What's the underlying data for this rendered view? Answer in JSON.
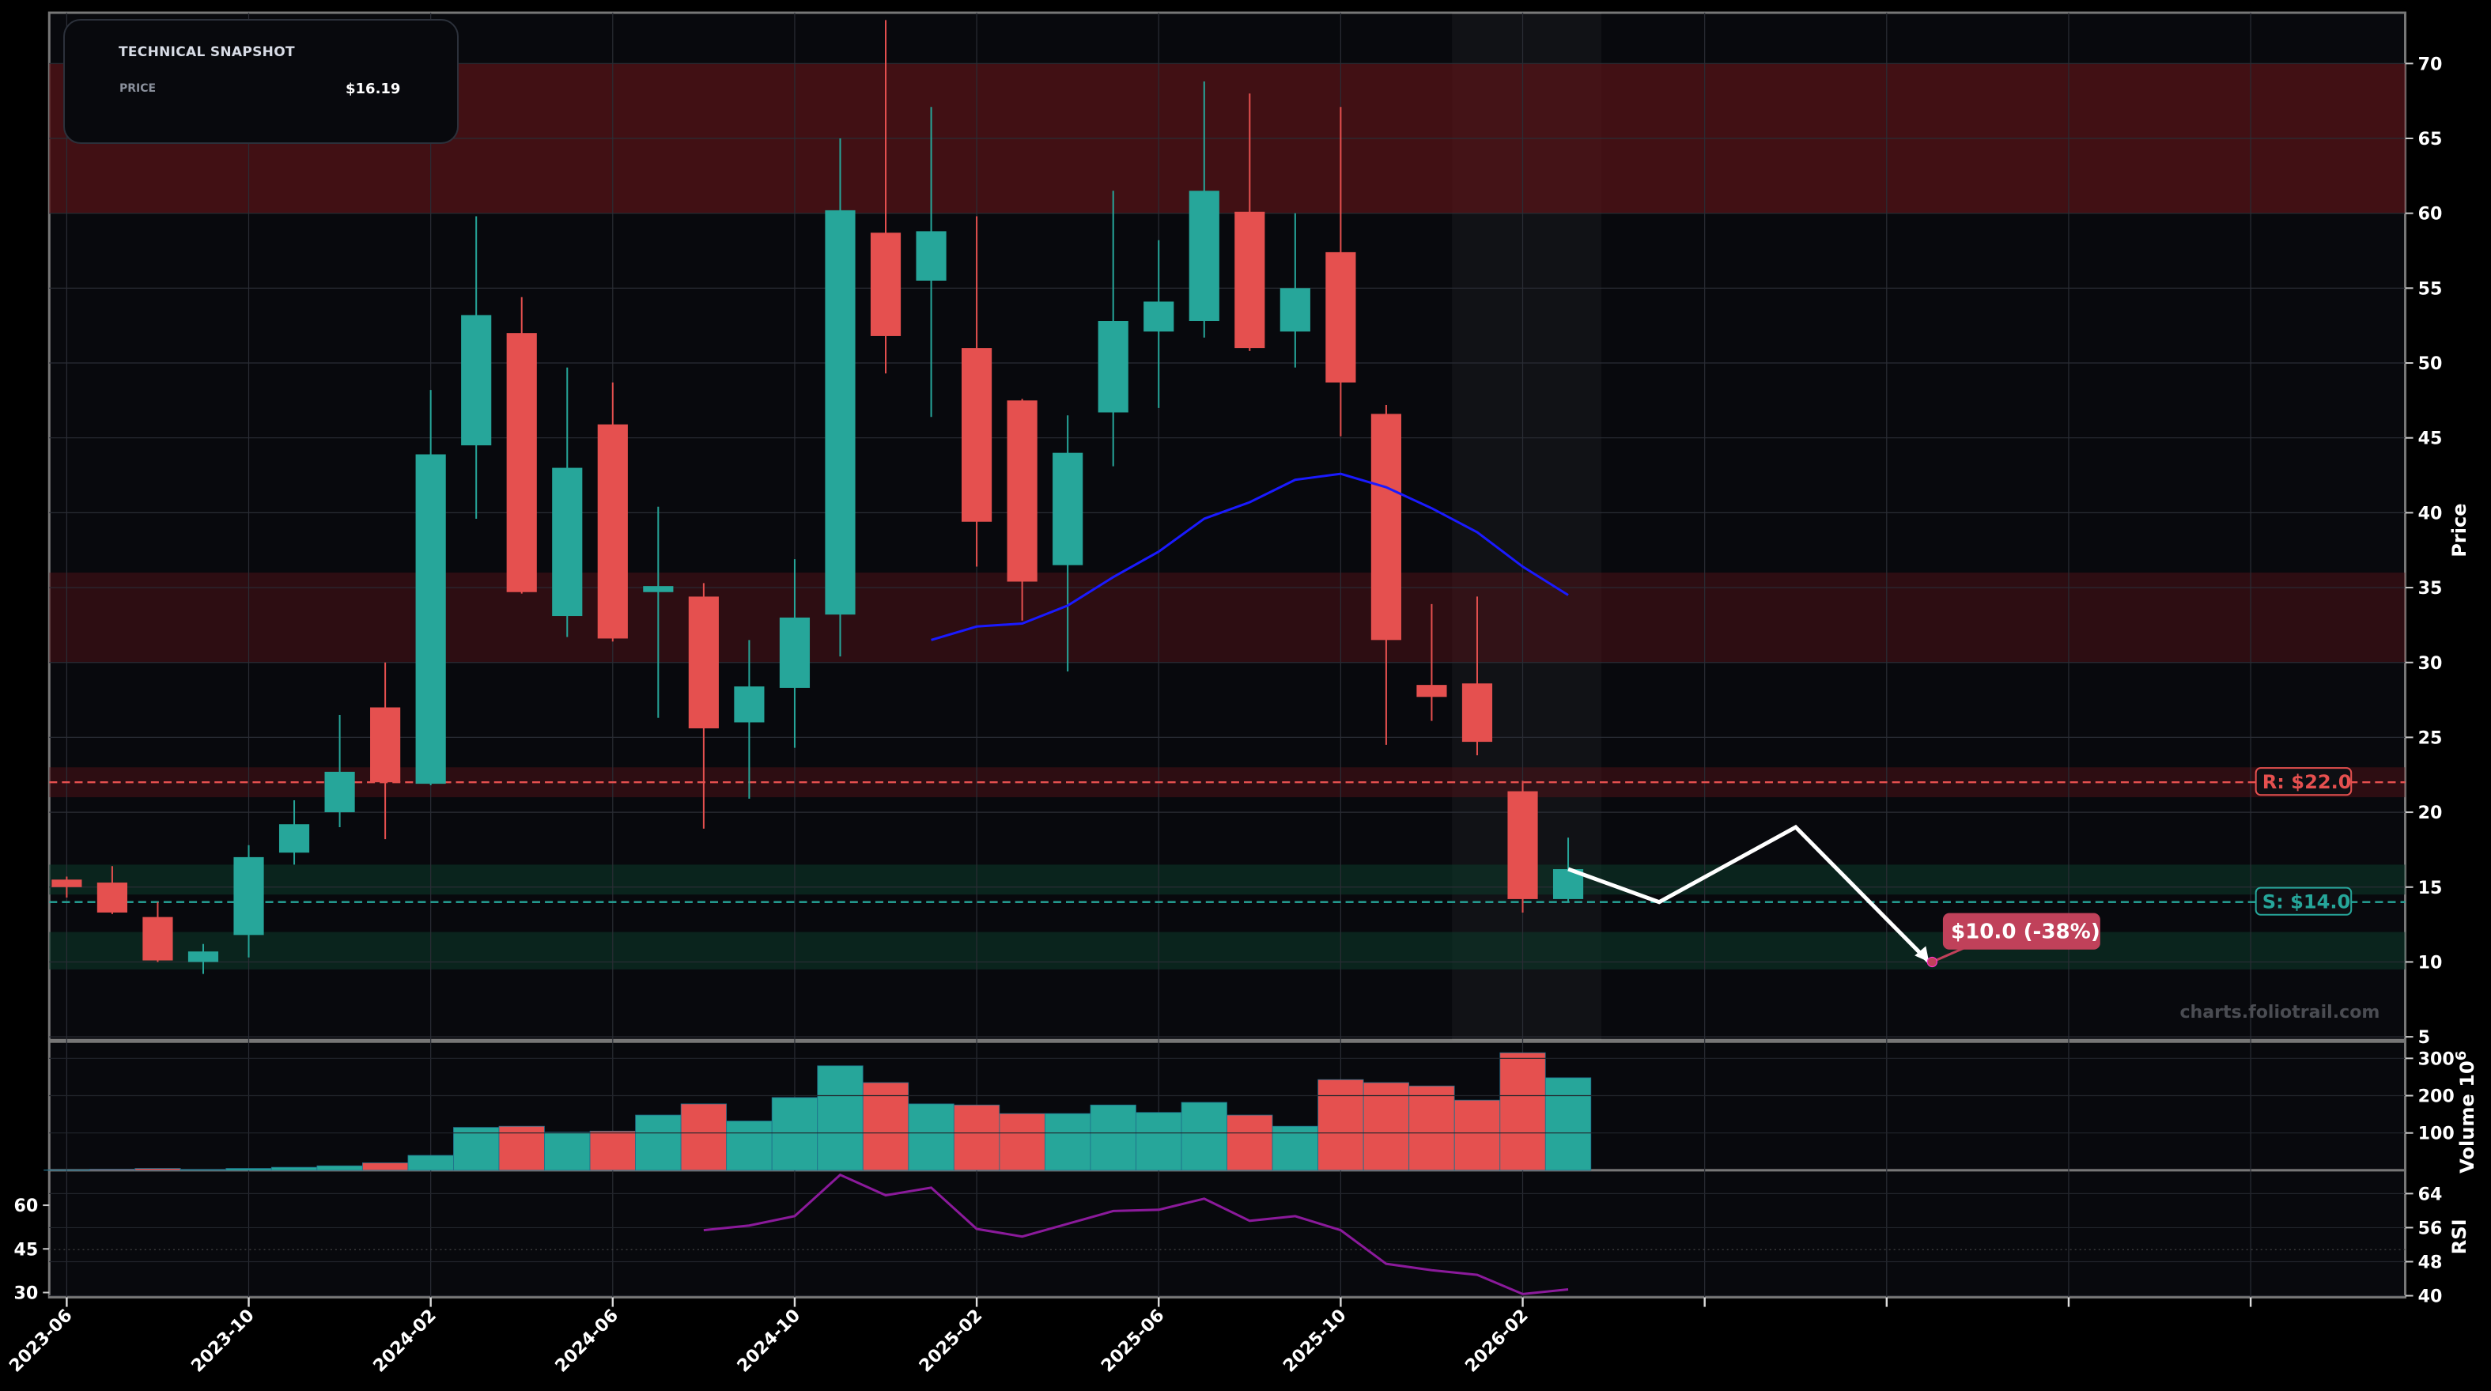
{
  "snapshot": {
    "title": "TECHNICAL SNAPSHOT",
    "price_label": "PRICE",
    "price_value": "$16.19"
  },
  "watermark": "charts.foliotrail.com",
  "colors": {
    "up": "#26a69a",
    "down": "#e5504f",
    "ma": "#1a1aff",
    "rsi": "#8b1a9b",
    "resistance": "#e5504f",
    "support": "#26a69a",
    "target": "#c0415a"
  },
  "chart_data": {
    "type": "candlestick",
    "dates": [
      "2023-06",
      "2023-07",
      "2023-08",
      "2023-09",
      "2023-10",
      "2023-11",
      "2023-12",
      "2024-01",
      "2024-02",
      "2024-03",
      "2024-04",
      "2024-05",
      "2024-06",
      "2024-07",
      "2024-08",
      "2024-09",
      "2024-10",
      "2024-11",
      "2024-12",
      "2025-01",
      "2025-02",
      "2025-03",
      "2025-04",
      "2025-05",
      "2025-06",
      "2025-07",
      "2025-08",
      "2025-09",
      "2025-10",
      "2025-11",
      "2025-12",
      "2026-01",
      "2026-02",
      "2026-03"
    ],
    "ohlc": [
      [
        15.5,
        15.7,
        14.3,
        15.0
      ],
      [
        15.3,
        16.4,
        13.2,
        13.3
      ],
      [
        13.0,
        14.0,
        10.0,
        10.1
      ],
      [
        10.0,
        11.2,
        9.2,
        10.7
      ],
      [
        11.8,
        17.8,
        10.3,
        17.0
      ],
      [
        17.3,
        20.8,
        16.5,
        19.2
      ],
      [
        20.0,
        26.5,
        19.0,
        22.7
      ],
      [
        27.0,
        30.0,
        18.2,
        22.0
      ],
      [
        21.9,
        48.2,
        21.8,
        43.9
      ],
      [
        44.5,
        59.8,
        39.6,
        53.2
      ],
      [
        52.0,
        54.4,
        34.6,
        34.7
      ],
      [
        33.1,
        49.7,
        31.7,
        43.0
      ],
      [
        45.9,
        48.7,
        31.4,
        31.6
      ],
      [
        34.7,
        40.4,
        26.3,
        35.1
      ],
      [
        34.4,
        35.3,
        18.9,
        25.6
      ],
      [
        26.0,
        31.5,
        20.9,
        28.4
      ],
      [
        28.3,
        36.9,
        24.3,
        33.0
      ],
      [
        33.2,
        65.0,
        30.4,
        60.2
      ],
      [
        58.7,
        72.9,
        49.3,
        51.8
      ],
      [
        55.5,
        67.1,
        46.4,
        58.8
      ],
      [
        51.0,
        59.8,
        36.4,
        39.4
      ],
      [
        47.5,
        47.6,
        32.8,
        35.4
      ],
      [
        36.5,
        46.5,
        29.4,
        44.0
      ],
      [
        46.7,
        61.5,
        43.1,
        52.8
      ],
      [
        52.1,
        58.2,
        47.0,
        54.1
      ],
      [
        52.8,
        68.8,
        51.7,
        61.5
      ],
      [
        60.1,
        68.0,
        50.8,
        51.0
      ],
      [
        52.1,
        60.0,
        49.7,
        55.0
      ],
      [
        57.4,
        67.1,
        45.1,
        48.7
      ],
      [
        46.6,
        47.2,
        24.5,
        31.5
      ],
      [
        28.5,
        33.9,
        26.1,
        27.7
      ],
      [
        28.6,
        34.4,
        23.8,
        24.7
      ],
      [
        21.4,
        22.1,
        13.3,
        14.2
      ],
      [
        14.2,
        18.3,
        14.0,
        16.2
      ]
    ],
    "moving_average": {
      "start": "2025-01",
      "values": [
        31.5,
        32.4,
        32.6,
        33.8,
        35.7,
        37.4,
        39.6,
        40.7,
        42.2,
        42.6,
        41.7,
        40.3,
        38.7,
        36.4,
        34.5
      ]
    },
    "volume": [
      1,
      3,
      5,
      2,
      5,
      8,
      12,
      20,
      40,
      115,
      118,
      102,
      105,
      148,
      178,
      132,
      195,
      280,
      235,
      178,
      175,
      152,
      152,
      175,
      155,
      182,
      148,
      118,
      243,
      235,
      226,
      188,
      315,
      248
    ],
    "rsi": {
      "start": "2024-08",
      "values": [
        55.4,
        56.5,
        58.7,
        68.4,
        63.6,
        65.4,
        55.7,
        53.9,
        56.9,
        59.9,
        60.2,
        62.8,
        57.6,
        58.7,
        55.4,
        47.5,
        46.0,
        44.9,
        40.4,
        41.5
      ]
    },
    "forecast": [
      {
        "date": "2026-03",
        "price": 16.2
      },
      {
        "date": "2026-05",
        "price": 14.0
      },
      {
        "date": "2026-08",
        "price": 19.0
      },
      {
        "date": "2026-11",
        "price": 10.0
      }
    ],
    "target_label": "$10.0 (-38%)",
    "resistance": {
      "value": 22.0,
      "label": "R: $22.0"
    },
    "support": {
      "value": 14.0,
      "label": "S: $14.0"
    },
    "zones": [
      {
        "kind": "resistance",
        "from": 60,
        "to": 70
      },
      {
        "kind": "resistance",
        "from": 30,
        "to": 36
      },
      {
        "kind": "resistance",
        "from": 21,
        "to": 23
      },
      {
        "kind": "support",
        "from": 14.5,
        "to": 16.5
      },
      {
        "kind": "support",
        "from": 9.5,
        "to": 12
      }
    ],
    "price_axis": {
      "label": "Price",
      "ticks": [
        5,
        10,
        15,
        20,
        25,
        30,
        35,
        40,
        45,
        50,
        55,
        60,
        65,
        70
      ],
      "ylim": [
        5,
        73
      ]
    },
    "volume_axis": {
      "label": "Volume  10",
      "exponent": "6",
      "ticks": [
        100,
        200,
        300
      ]
    },
    "rsi_axis": {
      "label": "RSI",
      "ticks": [
        40,
        48,
        56,
        64
      ],
      "left_ticks": [
        30,
        45,
        60
      ]
    },
    "x_ticks": [
      "2023-06",
      "2023-10",
      "2024-02",
      "2024-06",
      "2024-10",
      "2025-02",
      "2025-06",
      "2025-10",
      "2026-02",
      "",
      "",
      "",
      ""
    ]
  }
}
